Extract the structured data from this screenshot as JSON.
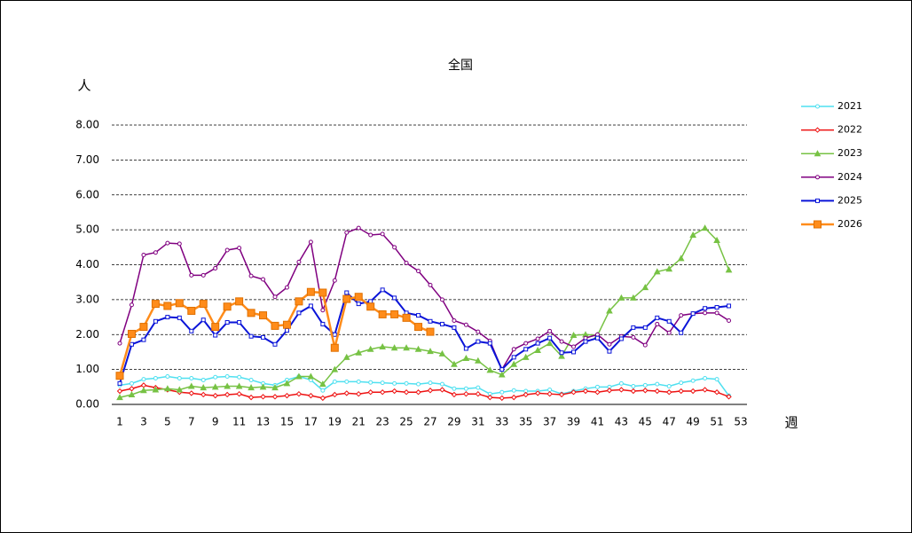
{
  "chart_data": {
    "type": "line",
    "title": "全国",
    "y_label": "人",
    "x_label": "週",
    "x": [
      1,
      2,
      3,
      4,
      5,
      6,
      7,
      8,
      9,
      10,
      11,
      12,
      13,
      14,
      15,
      16,
      17,
      18,
      19,
      20,
      21,
      22,
      23,
      24,
      25,
      26,
      27,
      28,
      29,
      30,
      31,
      32,
      33,
      34,
      35,
      36,
      37,
      38,
      39,
      40,
      41,
      42,
      43,
      44,
      45,
      46,
      47,
      48,
      49,
      50,
      51,
      52
    ],
    "xlim": [
      1,
      53
    ],
    "xticks": [
      1,
      3,
      5,
      7,
      9,
      11,
      13,
      15,
      17,
      19,
      21,
      23,
      25,
      27,
      29,
      31,
      33,
      35,
      37,
      39,
      41,
      43,
      45,
      47,
      49,
      51,
      53
    ],
    "ylim": [
      0,
      8
    ],
    "yticks": [
      {
        "value": 0,
        "label": "0.00"
      },
      {
        "value": 1,
        "label": "1.00"
      },
      {
        "value": 2,
        "label": "2.00"
      },
      {
        "value": 3,
        "label": "3.00"
      },
      {
        "value": 4,
        "label": "4.00"
      },
      {
        "value": 5,
        "label": "5.00"
      },
      {
        "value": 6,
        "label": "6.00"
      },
      {
        "value": 7,
        "label": "7.00"
      },
      {
        "value": 8,
        "label": "8.00"
      }
    ],
    "grid": true,
    "legend": "right",
    "series": [
      {
        "name": "2021",
        "color": "#4fe0f0",
        "marker": "circle",
        "line_width": 1.5,
        "values": [
          0.55,
          0.6,
          0.72,
          0.75,
          0.8,
          0.75,
          0.75,
          0.7,
          0.78,
          0.8,
          0.78,
          0.7,
          0.6,
          0.55,
          0.7,
          0.8,
          0.7,
          0.4,
          0.65,
          0.65,
          0.65,
          0.63,
          0.62,
          0.6,
          0.6,
          0.58,
          0.62,
          0.58,
          0.45,
          0.45,
          0.48,
          0.3,
          0.35,
          0.4,
          0.38,
          0.38,
          0.42,
          0.3,
          0.38,
          0.45,
          0.5,
          0.5,
          0.6,
          0.52,
          0.55,
          0.58,
          0.52,
          0.62,
          0.68,
          0.75,
          0.72,
          0.25
        ]
      },
      {
        "name": "2022",
        "color": "#ee1111",
        "marker": "diamond",
        "line_width": 1.5,
        "values": [
          0.38,
          0.45,
          0.55,
          0.48,
          0.42,
          0.35,
          0.32,
          0.28,
          0.25,
          0.28,
          0.3,
          0.2,
          0.22,
          0.22,
          0.25,
          0.3,
          0.25,
          0.18,
          0.28,
          0.32,
          0.3,
          0.35,
          0.35,
          0.38,
          0.35,
          0.35,
          0.4,
          0.42,
          0.28,
          0.3,
          0.3,
          0.2,
          0.18,
          0.2,
          0.28,
          0.32,
          0.3,
          0.28,
          0.35,
          0.38,
          0.35,
          0.4,
          0.42,
          0.38,
          0.4,
          0.38,
          0.35,
          0.38,
          0.38,
          0.42,
          0.35,
          0.22
        ]
      },
      {
        "name": "2023",
        "color": "#77c244",
        "marker": "triangle",
        "line_width": 1.5,
        "values": [
          0.2,
          0.28,
          0.4,
          0.42,
          0.45,
          0.42,
          0.52,
          0.48,
          0.5,
          0.52,
          0.52,
          0.48,
          0.5,
          0.48,
          0.6,
          0.8,
          0.8,
          0.58,
          1.0,
          1.35,
          1.48,
          1.58,
          1.65,
          1.62,
          1.62,
          1.58,
          1.52,
          1.45,
          1.15,
          1.32,
          1.25,
          0.98,
          0.85,
          1.15,
          1.35,
          1.55,
          1.75,
          1.38,
          1.98,
          2.0,
          1.98,
          2.68,
          3.05,
          3.05,
          3.35,
          3.8,
          3.88,
          4.18,
          4.85,
          5.05,
          4.7,
          3.85
        ]
      },
      {
        "name": "2024",
        "color": "#800080",
        "marker": "circle",
        "line_width": 1.5,
        "values": [
          1.75,
          2.85,
          4.28,
          4.35,
          4.62,
          4.6,
          3.7,
          3.7,
          3.9,
          4.42,
          4.48,
          3.68,
          3.58,
          3.08,
          3.35,
          4.08,
          4.65,
          2.7,
          3.55,
          4.92,
          5.05,
          4.85,
          4.88,
          4.5,
          4.05,
          3.82,
          3.42,
          3.0,
          2.4,
          2.28,
          2.08,
          1.82,
          1.0,
          1.58,
          1.75,
          1.88,
          2.1,
          1.8,
          1.65,
          1.9,
          2.0,
          1.72,
          1.95,
          1.92,
          1.7,
          2.3,
          2.05,
          2.55,
          2.6,
          2.62,
          2.62,
          2.4
        ]
      },
      {
        "name": "2025",
        "color": "#0a14d8",
        "marker": "square",
        "line_width": 2,
        "values": [
          0.6,
          1.72,
          1.85,
          2.38,
          2.5,
          2.48,
          2.1,
          2.42,
          1.98,
          2.35,
          2.35,
          1.95,
          1.92,
          1.72,
          2.12,
          2.62,
          2.82,
          2.3,
          2.0,
          3.2,
          2.88,
          2.95,
          3.28,
          3.05,
          2.62,
          2.55,
          2.38,
          2.3,
          2.2,
          1.6,
          1.8,
          1.75,
          1.0,
          1.35,
          1.58,
          1.75,
          1.9,
          1.48,
          1.5,
          1.8,
          1.9,
          1.52,
          1.88,
          2.2,
          2.2,
          2.48,
          2.38,
          2.05,
          2.6,
          2.75,
          2.78,
          2.82
        ]
      },
      {
        "name": "2026",
        "color": "#ff8c1a",
        "marker": "big-square",
        "line_width": 2.5,
        "values": [
          0.82,
          2.02,
          2.22,
          2.88,
          2.82,
          2.9,
          2.68,
          2.88,
          2.22,
          2.8,
          2.95,
          2.62,
          2.55,
          2.25,
          2.28,
          2.95,
          3.22,
          3.2,
          1.62,
          3.02,
          3.08,
          2.8,
          2.58,
          2.58,
          2.48,
          2.22,
          2.08,
          null,
          null,
          null,
          null,
          null,
          null,
          null,
          null,
          null,
          null,
          null,
          null,
          null,
          null,
          null,
          null,
          null,
          null,
          null,
          null,
          null,
          null,
          null,
          null,
          null
        ]
      }
    ]
  }
}
